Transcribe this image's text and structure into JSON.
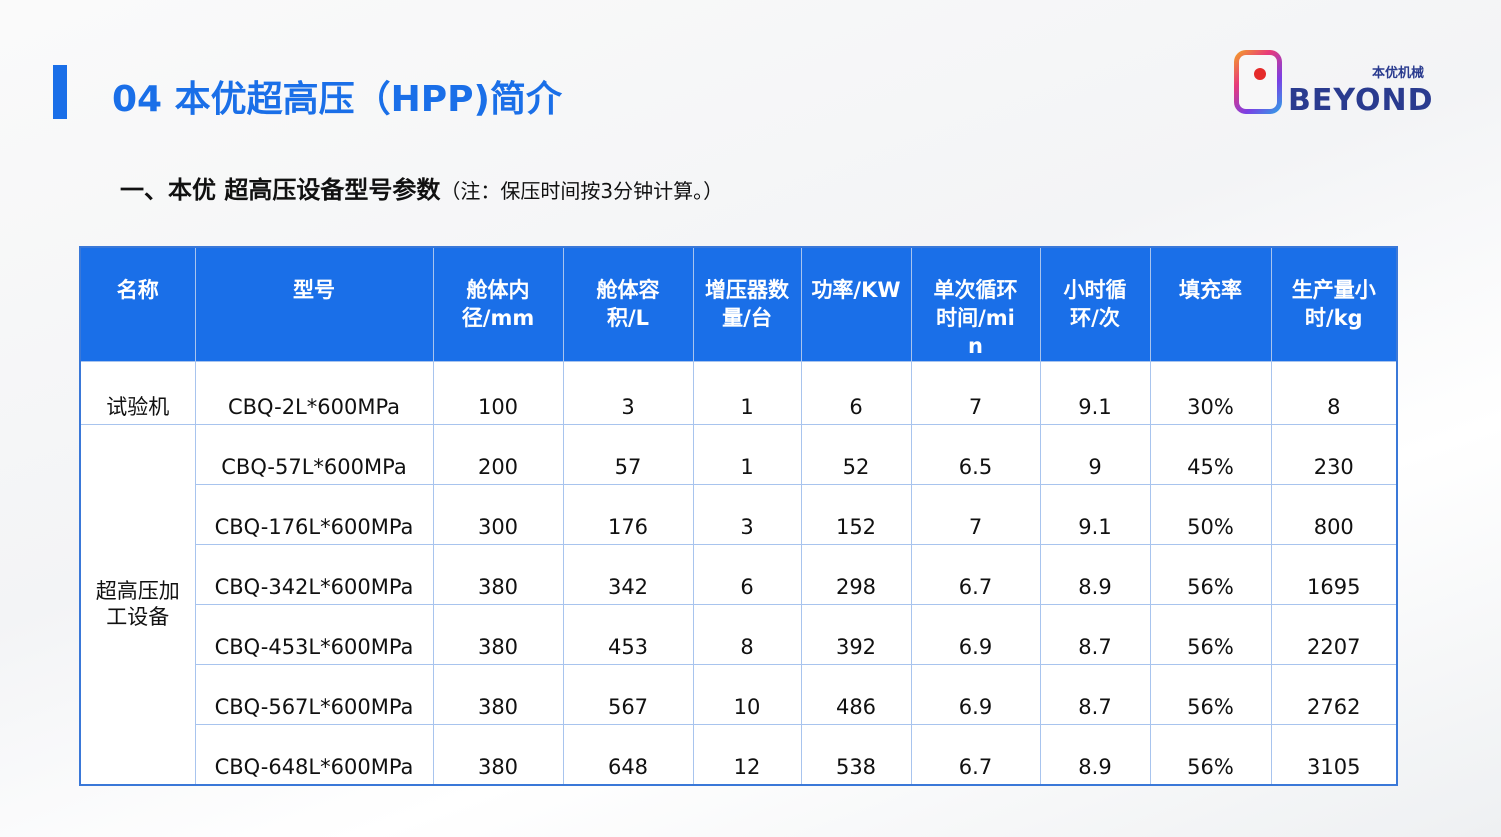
{
  "header": {
    "title": "04 本优超高压（HPP)简介",
    "subtitle": "一、本优 超高压设备型号参数",
    "note": "（注：保压时间按3分钟计算。）"
  },
  "logo": {
    "cn": "本优机械",
    "en": "BEYOND"
  },
  "colors": {
    "accent": "#1a6fe8",
    "grid": "#a8c4ee"
  },
  "table": {
    "columns": [
      "名称",
      "型号",
      "舱体内径/mm",
      "舱体容积/L",
      "增压器数量/台",
      "功率/KW",
      "单次循环时间/min",
      "小时循环/次",
      "填充率",
      "生产量小时/kg"
    ],
    "groups": [
      {
        "name": "试验机",
        "rows": [
          [
            "CBQ-2L*600MPa",
            "100",
            "3",
            "1",
            "6",
            "7",
            "9.1",
            "30%",
            "8"
          ]
        ]
      },
      {
        "name": "超高压加工设备",
        "rows": [
          [
            "CBQ-57L*600MPa",
            "200",
            "57",
            "1",
            "52",
            "6.5",
            "9",
            "45%",
            "230"
          ],
          [
            "CBQ-176L*600MPa",
            "300",
            "176",
            "3",
            "152",
            "7",
            "9.1",
            "50%",
            "800"
          ],
          [
            "CBQ-342L*600MPa",
            "380",
            "342",
            "6",
            "298",
            "6.7",
            "8.9",
            "56%",
            "1695"
          ],
          [
            "CBQ-453L*600MPa",
            "380",
            "453",
            "8",
            "392",
            "6.9",
            "8.7",
            "56%",
            "2207"
          ],
          [
            "CBQ-567L*600MPa",
            "380",
            "567",
            "10",
            "486",
            "6.9",
            "8.7",
            "56%",
            "2762"
          ],
          [
            "CBQ-648L*600MPa",
            "380",
            "648",
            "12",
            "538",
            "6.7",
            "8.9",
            "56%",
            "3105"
          ]
        ]
      }
    ]
  }
}
